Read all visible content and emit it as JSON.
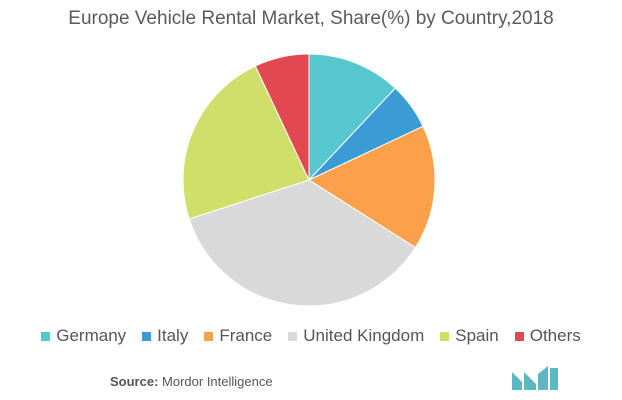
{
  "chart_data": {
    "type": "pie",
    "title": "Europe Vehicle Rental Market, Share(%) by Country,2018",
    "series": [
      {
        "name": "Germany",
        "value": 12,
        "color": "#56c7cf"
      },
      {
        "name": "Italy",
        "value": 6,
        "color": "#3a9bd5"
      },
      {
        "name": "France",
        "value": 16,
        "color": "#fca14a"
      },
      {
        "name": "United Kingdom",
        "value": 36,
        "color": "#d9d9d9"
      },
      {
        "name": "Spain",
        "value": 23,
        "color": "#cfdf6a"
      },
      {
        "name": "Others",
        "value": 7,
        "color": "#e1484f"
      }
    ],
    "legend_position": "bottom"
  },
  "source": {
    "label": "Source:",
    "text": "Mordor Intelligence"
  },
  "logo": {
    "icon": "mordor-intelligence-logo-icon",
    "color": "#5fb7c4"
  }
}
